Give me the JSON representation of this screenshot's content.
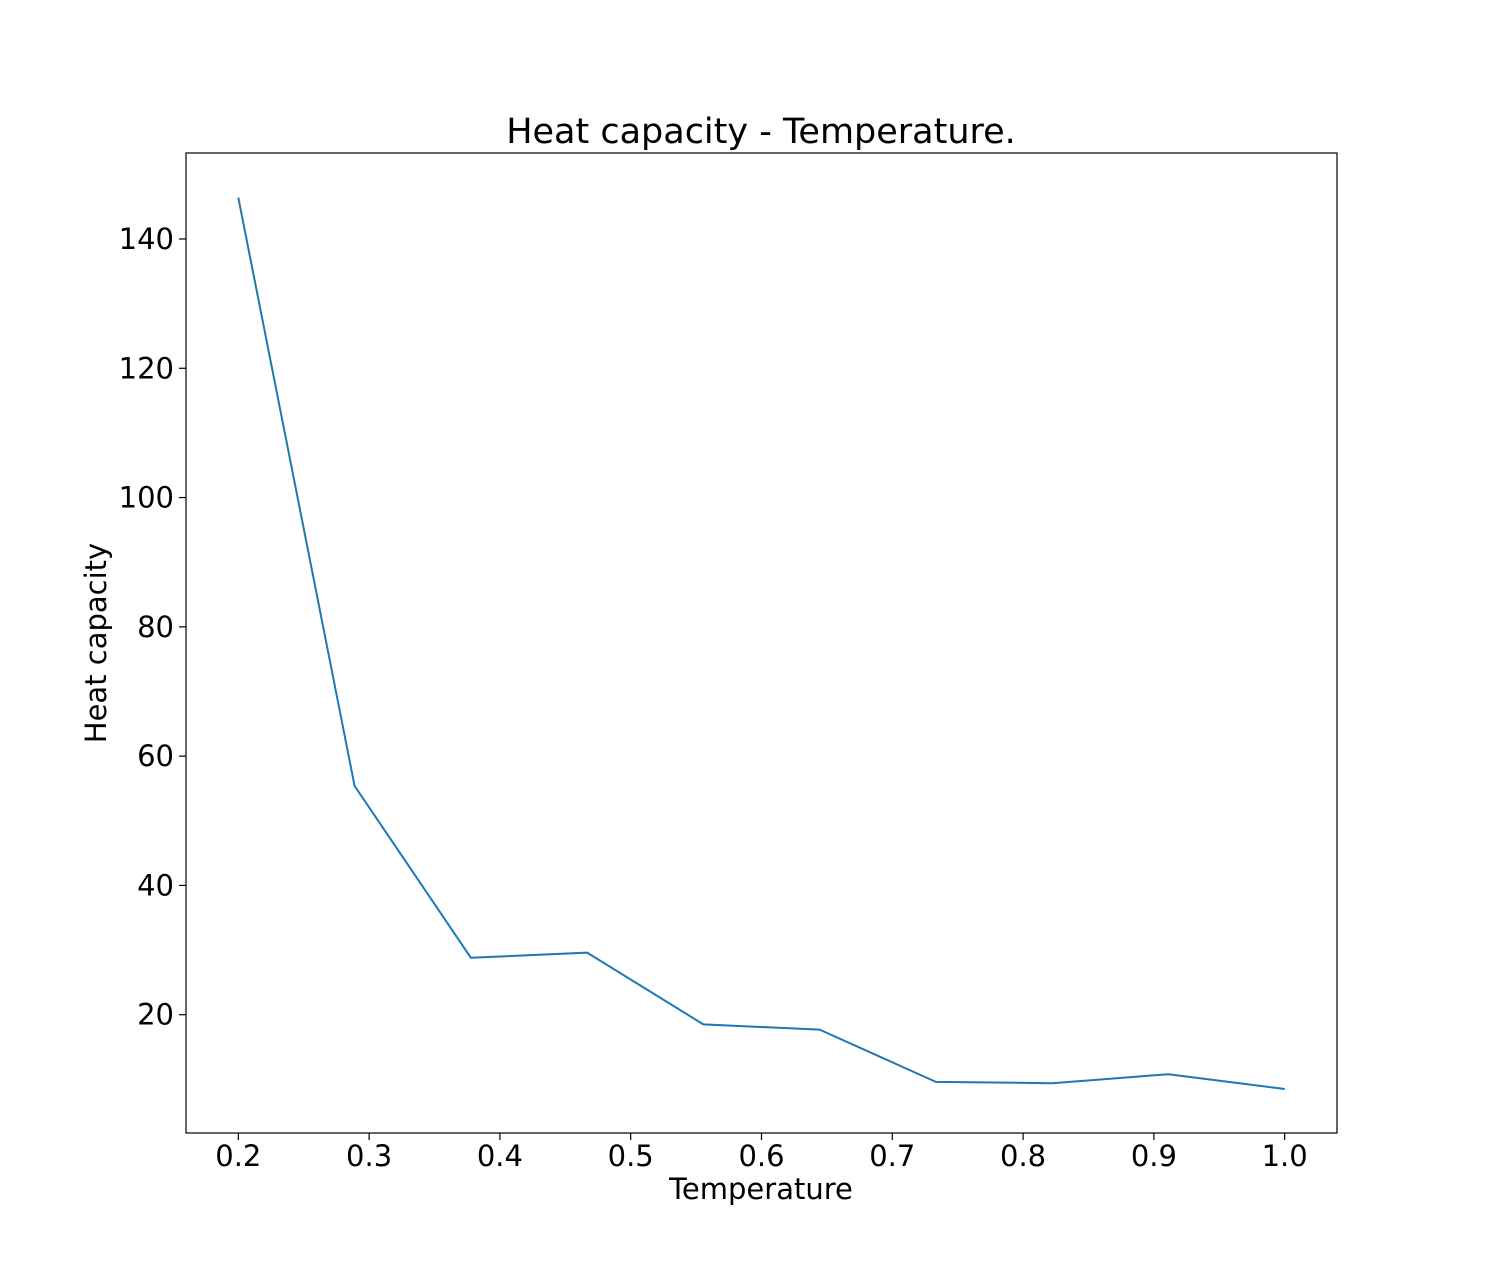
{
  "chart_data": {
    "type": "line",
    "title": "Heat capacity - Temperature.",
    "xlabel": "Temperature",
    "ylabel": "Heat capacity",
    "xlim": [
      0.16,
      1.04
    ],
    "ylim": [
      1.7,
      153.3
    ],
    "xticks": [
      0.2,
      0.3,
      0.4,
      0.5,
      0.6,
      0.7,
      0.8,
      0.9,
      1.0
    ],
    "xtick_labels": [
      "0.2",
      "0.3",
      "0.4",
      "0.5",
      "0.6",
      "0.7",
      "0.8",
      "0.9",
      "1.0"
    ],
    "yticks": [
      20,
      40,
      60,
      80,
      100,
      120,
      140
    ],
    "ytick_labels": [
      "20",
      "40",
      "60",
      "80",
      "100",
      "120",
      "140"
    ],
    "grid": false,
    "legend": "none",
    "series": [
      {
        "color": "#1f77b4",
        "x": [
          0.2,
          0.2889,
          0.3778,
          0.4667,
          0.5556,
          0.6444,
          0.7333,
          0.8222,
          0.9111,
          1.0
        ],
        "y": [
          146.4,
          55.4,
          28.8,
          29.6,
          18.5,
          17.7,
          9.6,
          9.4,
          10.8,
          8.5
        ]
      }
    ]
  }
}
